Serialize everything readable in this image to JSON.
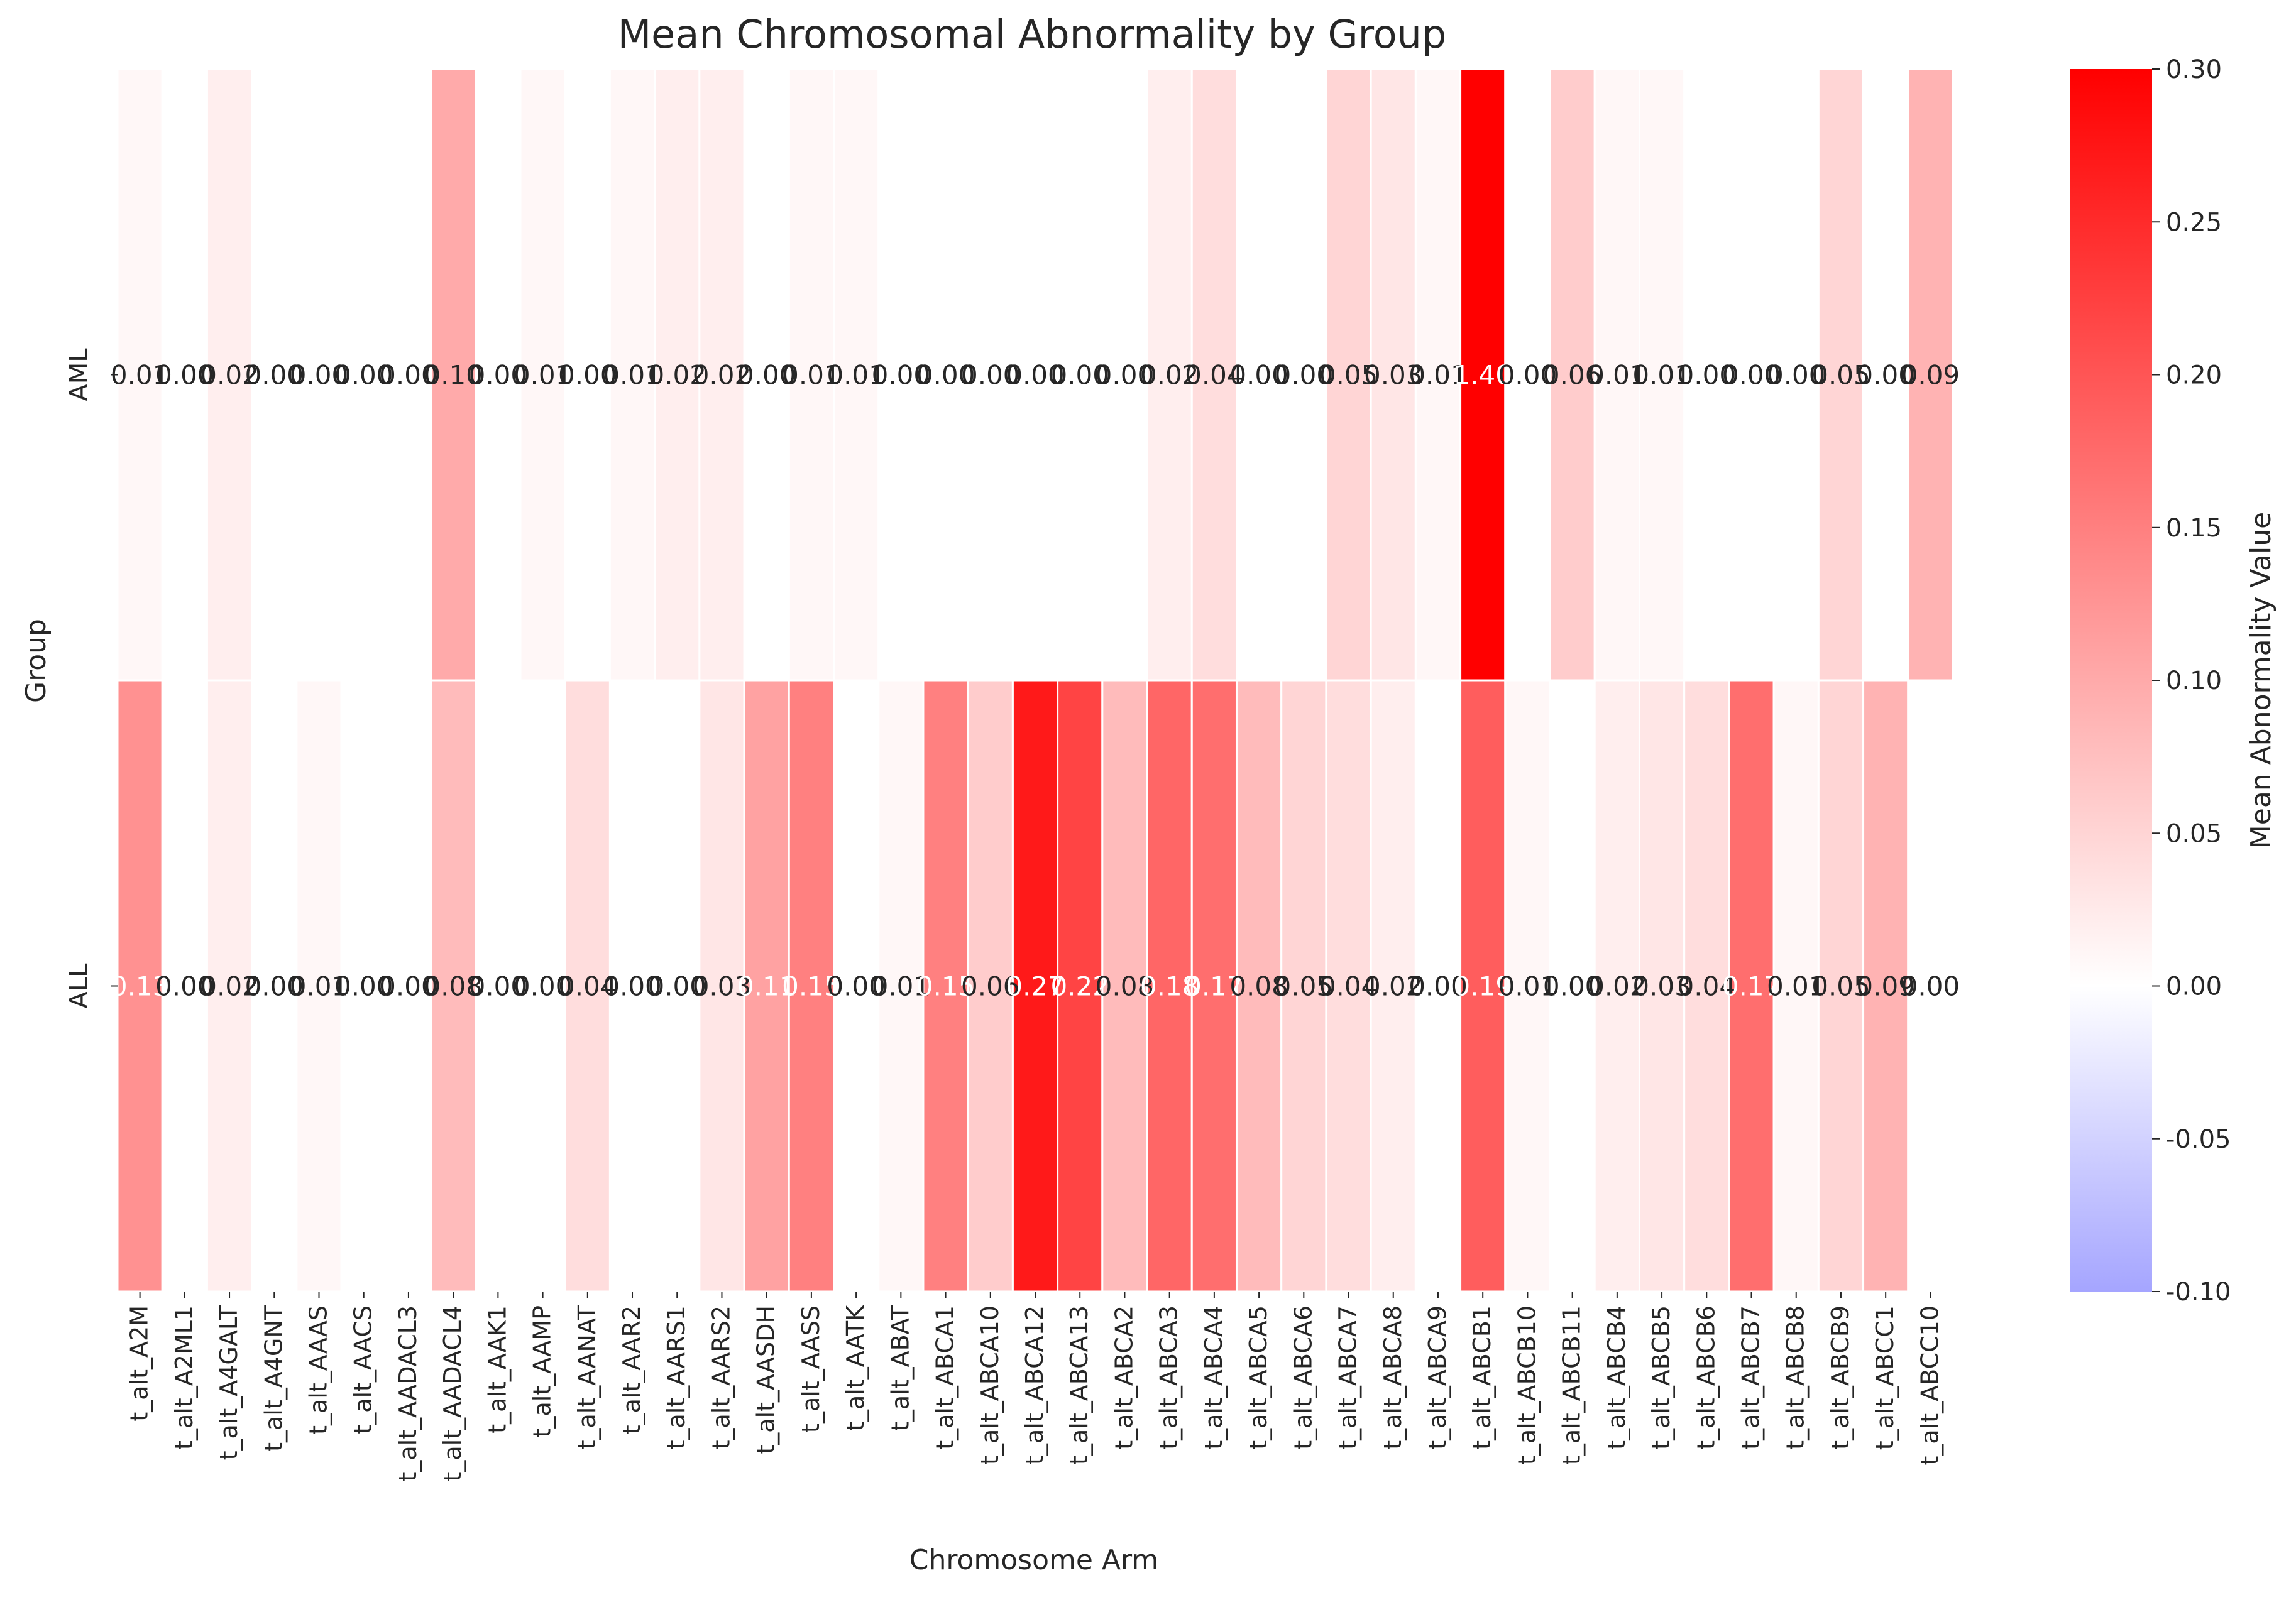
{
  "chart_data": {
    "type": "heatmap",
    "title": "Mean Chromosomal Abnormality by Group",
    "xlabel": "Chromosome Arm",
    "ylabel": "Group",
    "colorbar_label": "Mean Abnormality Value",
    "rows": [
      "AML",
      "ALL"
    ],
    "columns": [
      "t_alt_A2M",
      "t_alt_A2ML1",
      "t_alt_A4GALT",
      "t_alt_A4GNT",
      "t_alt_AAAS",
      "t_alt_AACS",
      "t_alt_AADACL3",
      "t_alt_AADACL4",
      "t_alt_AAK1",
      "t_alt_AAMP",
      "t_alt_AANAT",
      "t_alt_AAR2",
      "t_alt_AARS1",
      "t_alt_AARS2",
      "t_alt_AASDH",
      "t_alt_AASS",
      "t_alt_AATK",
      "t_alt_ABAT",
      "t_alt_ABCA1",
      "t_alt_ABCA10",
      "t_alt_ABCA12",
      "t_alt_ABCA13",
      "t_alt_ABCA2",
      "t_alt_ABCA3",
      "t_alt_ABCA4",
      "t_alt_ABCA5",
      "t_alt_ABCA6",
      "t_alt_ABCA7",
      "t_alt_ABCA8",
      "t_alt_ABCA9",
      "t_alt_ABCB1",
      "t_alt_ABCB10",
      "t_alt_ABCB11",
      "t_alt_ABCB4",
      "t_alt_ABCB5",
      "t_alt_ABCB6",
      "t_alt_ABCB7",
      "t_alt_ABCB8",
      "t_alt_ABCB9",
      "t_alt_ABCC1",
      "t_alt_ABCC10"
    ],
    "values": [
      [
        0.01,
        0.0,
        0.02,
        0.0,
        0.0,
        0.0,
        0.0,
        0.1,
        0.0,
        0.01,
        0.0,
        0.01,
        0.02,
        0.02,
        0.0,
        0.01,
        0.01,
        0.0,
        0.0,
        0.0,
        0.0,
        0.0,
        0.0,
        0.02,
        0.04,
        0.0,
        0.0,
        0.05,
        0.03,
        0.01,
        1.4,
        0.0,
        0.06,
        0.01,
        0.01,
        0.0,
        0.0,
        0.0,
        0.05,
        0.0,
        0.09
      ],
      [
        0.13,
        0.0,
        0.02,
        0.0,
        0.01,
        0.0,
        0.0,
        0.08,
        0.0,
        0.0,
        0.04,
        0.0,
        0.0,
        0.03,
        0.11,
        0.15,
        0.0,
        0.01,
        0.15,
        0.06,
        0.27,
        0.22,
        0.08,
        0.18,
        0.17,
        0.08,
        0.05,
        0.04,
        0.02,
        0.0,
        0.19,
        0.01,
        0.0,
        0.02,
        0.03,
        0.04,
        0.17,
        0.01,
        0.05,
        0.09,
        0.0
      ]
    ],
    "value_labels": [
      [
        "0.01",
        "0.00",
        "0.02",
        "0.00",
        "0.00",
        "0.00",
        "0.00",
        "0.10",
        "0.00",
        "0.01",
        "0.00",
        "0.01",
        "0.02",
        "0.02",
        "0.00",
        "0.01",
        "0.01",
        "0.00",
        "0.00",
        "0.00",
        "0.00",
        "0.00",
        "0.00",
        "0.02",
        "0.04",
        "0.00",
        "0.00",
        "0.05",
        "0.03",
        "0.01",
        "1.40",
        "0.00",
        "0.06",
        "0.01",
        "0.01",
        "0.00",
        "0.00",
        "0.00",
        "0.05",
        "0.00",
        "0.09"
      ],
      [
        "0.13",
        "0.00",
        "0.02",
        "0.00",
        "0.01",
        "0.00",
        "0.00",
        "0.08",
        "0.00",
        "0.00",
        "0.04",
        "0.00",
        "0.00",
        "0.03",
        "0.11",
        "0.15",
        "0.00",
        "0.01",
        "0.15",
        "0.06",
        "0.27",
        "0.22",
        "0.08",
        "0.18",
        "0.17",
        "0.08",
        "0.05",
        "0.04",
        "0.02",
        "0.00",
        "0.19",
        "0.01",
        "0.00",
        "0.02",
        "0.03",
        "0.04",
        "0.17",
        "0.01",
        "0.05",
        "0.09",
        "0.00"
      ]
    ],
    "color_range": [
      -0.1,
      0.3
    ],
    "colorbar_ticks": [
      "-0.10",
      "-0.05",
      "0.00",
      "0.05",
      "0.10",
      "0.15",
      "0.20",
      "0.25",
      "0.30"
    ],
    "colors": {
      "low": "#a5a5ff",
      "mid": "#ffffff",
      "high": "#ff0000"
    },
    "grid": false
  }
}
